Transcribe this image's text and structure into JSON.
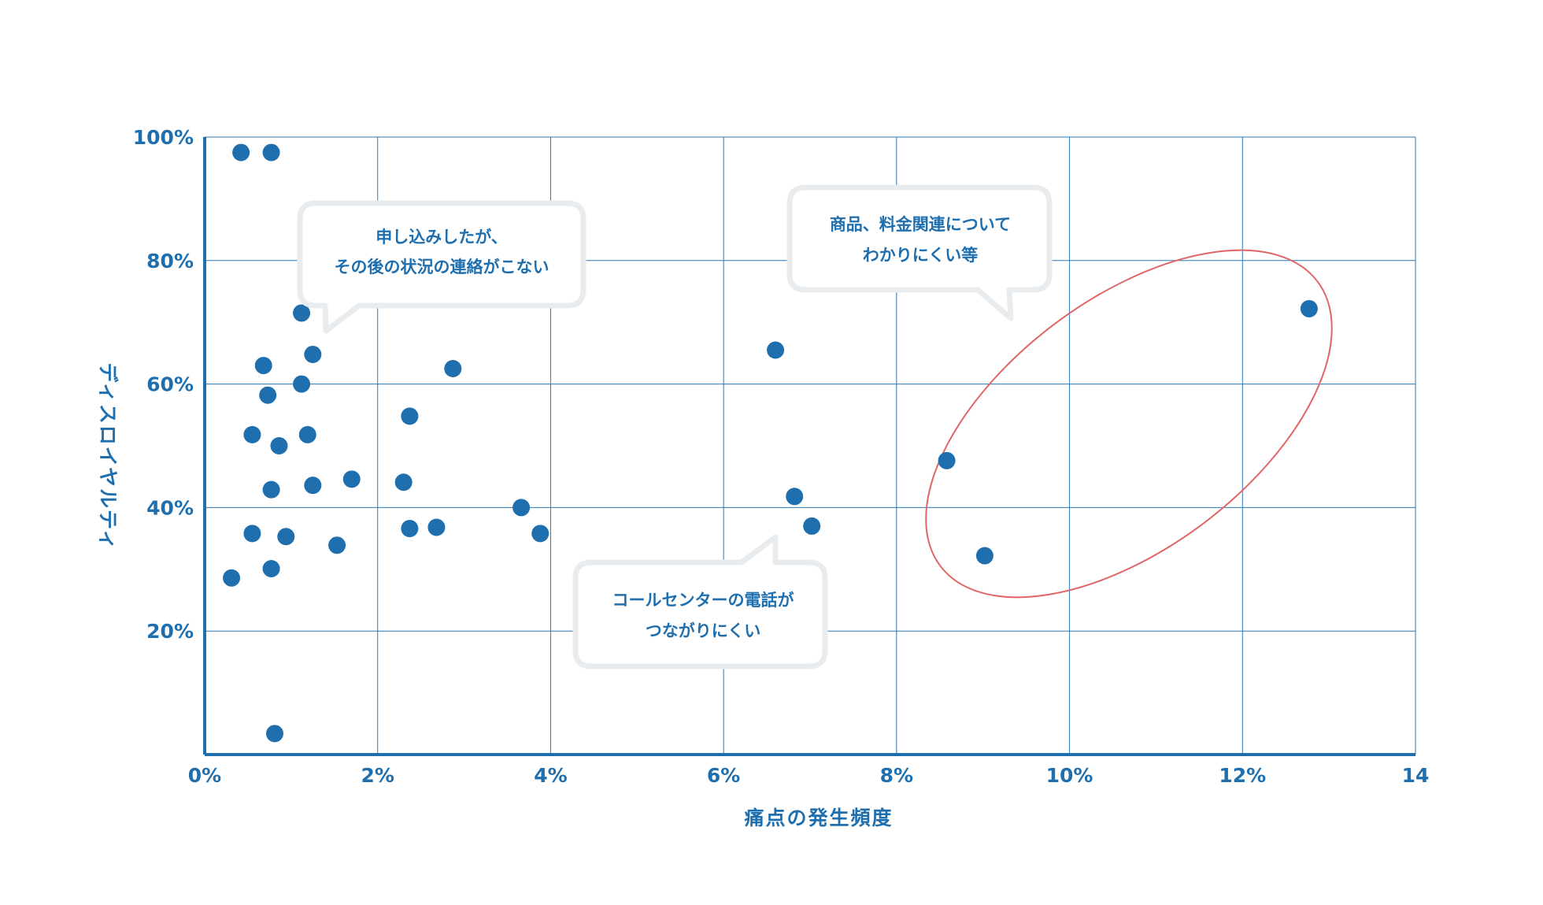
{
  "colors": {
    "primary": "#1f6fae",
    "grid": "#2b77b5",
    "bubble_border": "#e9ecee",
    "highlight": "#e06666"
  },
  "chart_data": {
    "type": "scatter",
    "xlabel": "痛点の発生頻度",
    "ylabel": "ディスロイヤルティ",
    "xlim": [
      0,
      14
    ],
    "ylim": [
      0,
      100
    ],
    "x_ticks": [
      0,
      2,
      4,
      6,
      8,
      10,
      12,
      14
    ],
    "y_ticks": [
      20,
      40,
      60,
      80,
      100
    ],
    "x_tick_labels": [
      "0%",
      "2%",
      "4%",
      "6%",
      "8%",
      "10%",
      "12%",
      14
    ],
    "y_tick_labels": [
      "20%",
      "40%",
      "60%",
      "80%",
      "100%"
    ],
    "grid": true,
    "legend": "none",
    "points": [
      {
        "x": 0.42,
        "y": 97.5
      },
      {
        "x": 0.77,
        "y": 97.5
      },
      {
        "x": 0.68,
        "y": 63.0
      },
      {
        "x": 0.73,
        "y": 58.2
      },
      {
        "x": 0.55,
        "y": 51.8
      },
      {
        "x": 0.86,
        "y": 50.0
      },
      {
        "x": 0.77,
        "y": 42.9
      },
      {
        "x": 0.55,
        "y": 35.8
      },
      {
        "x": 0.94,
        "y": 35.3
      },
      {
        "x": 0.77,
        "y": 30.1
      },
      {
        "x": 0.31,
        "y": 28.6
      },
      {
        "x": 0.81,
        "y": 3.4
      },
      {
        "x": 1.12,
        "y": 71.5
      },
      {
        "x": 1.25,
        "y": 64.8
      },
      {
        "x": 1.12,
        "y": 60.0
      },
      {
        "x": 1.19,
        "y": 51.8
      },
      {
        "x": 1.25,
        "y": 43.6
      },
      {
        "x": 1.7,
        "y": 44.6
      },
      {
        "x": 1.53,
        "y": 33.9
      },
      {
        "x": 2.87,
        "y": 62.5
      },
      {
        "x": 2.37,
        "y": 54.8
      },
      {
        "x": 2.3,
        "y": 44.1
      },
      {
        "x": 2.37,
        "y": 36.6
      },
      {
        "x": 2.68,
        "y": 36.8
      },
      {
        "x": 3.66,
        "y": 40.0
      },
      {
        "x": 3.88,
        "y": 35.8
      },
      {
        "x": 6.6,
        "y": 65.5
      },
      {
        "x": 6.82,
        "y": 41.8
      },
      {
        "x": 7.02,
        "y": 37.0
      },
      {
        "x": 8.58,
        "y": 47.6
      },
      {
        "x": 9.02,
        "y": 32.2
      },
      {
        "x": 12.77,
        "y": 72.2
      }
    ],
    "annotations": [
      {
        "lines": [
          "申し込みしたが、",
          "その後の状況の連絡がこない"
        ]
      },
      {
        "lines": [
          "商品、料金関連について",
          "わかりにくい等"
        ]
      },
      {
        "lines": [
          "コールセンターの電話が",
          "つながりにくい"
        ]
      }
    ]
  }
}
